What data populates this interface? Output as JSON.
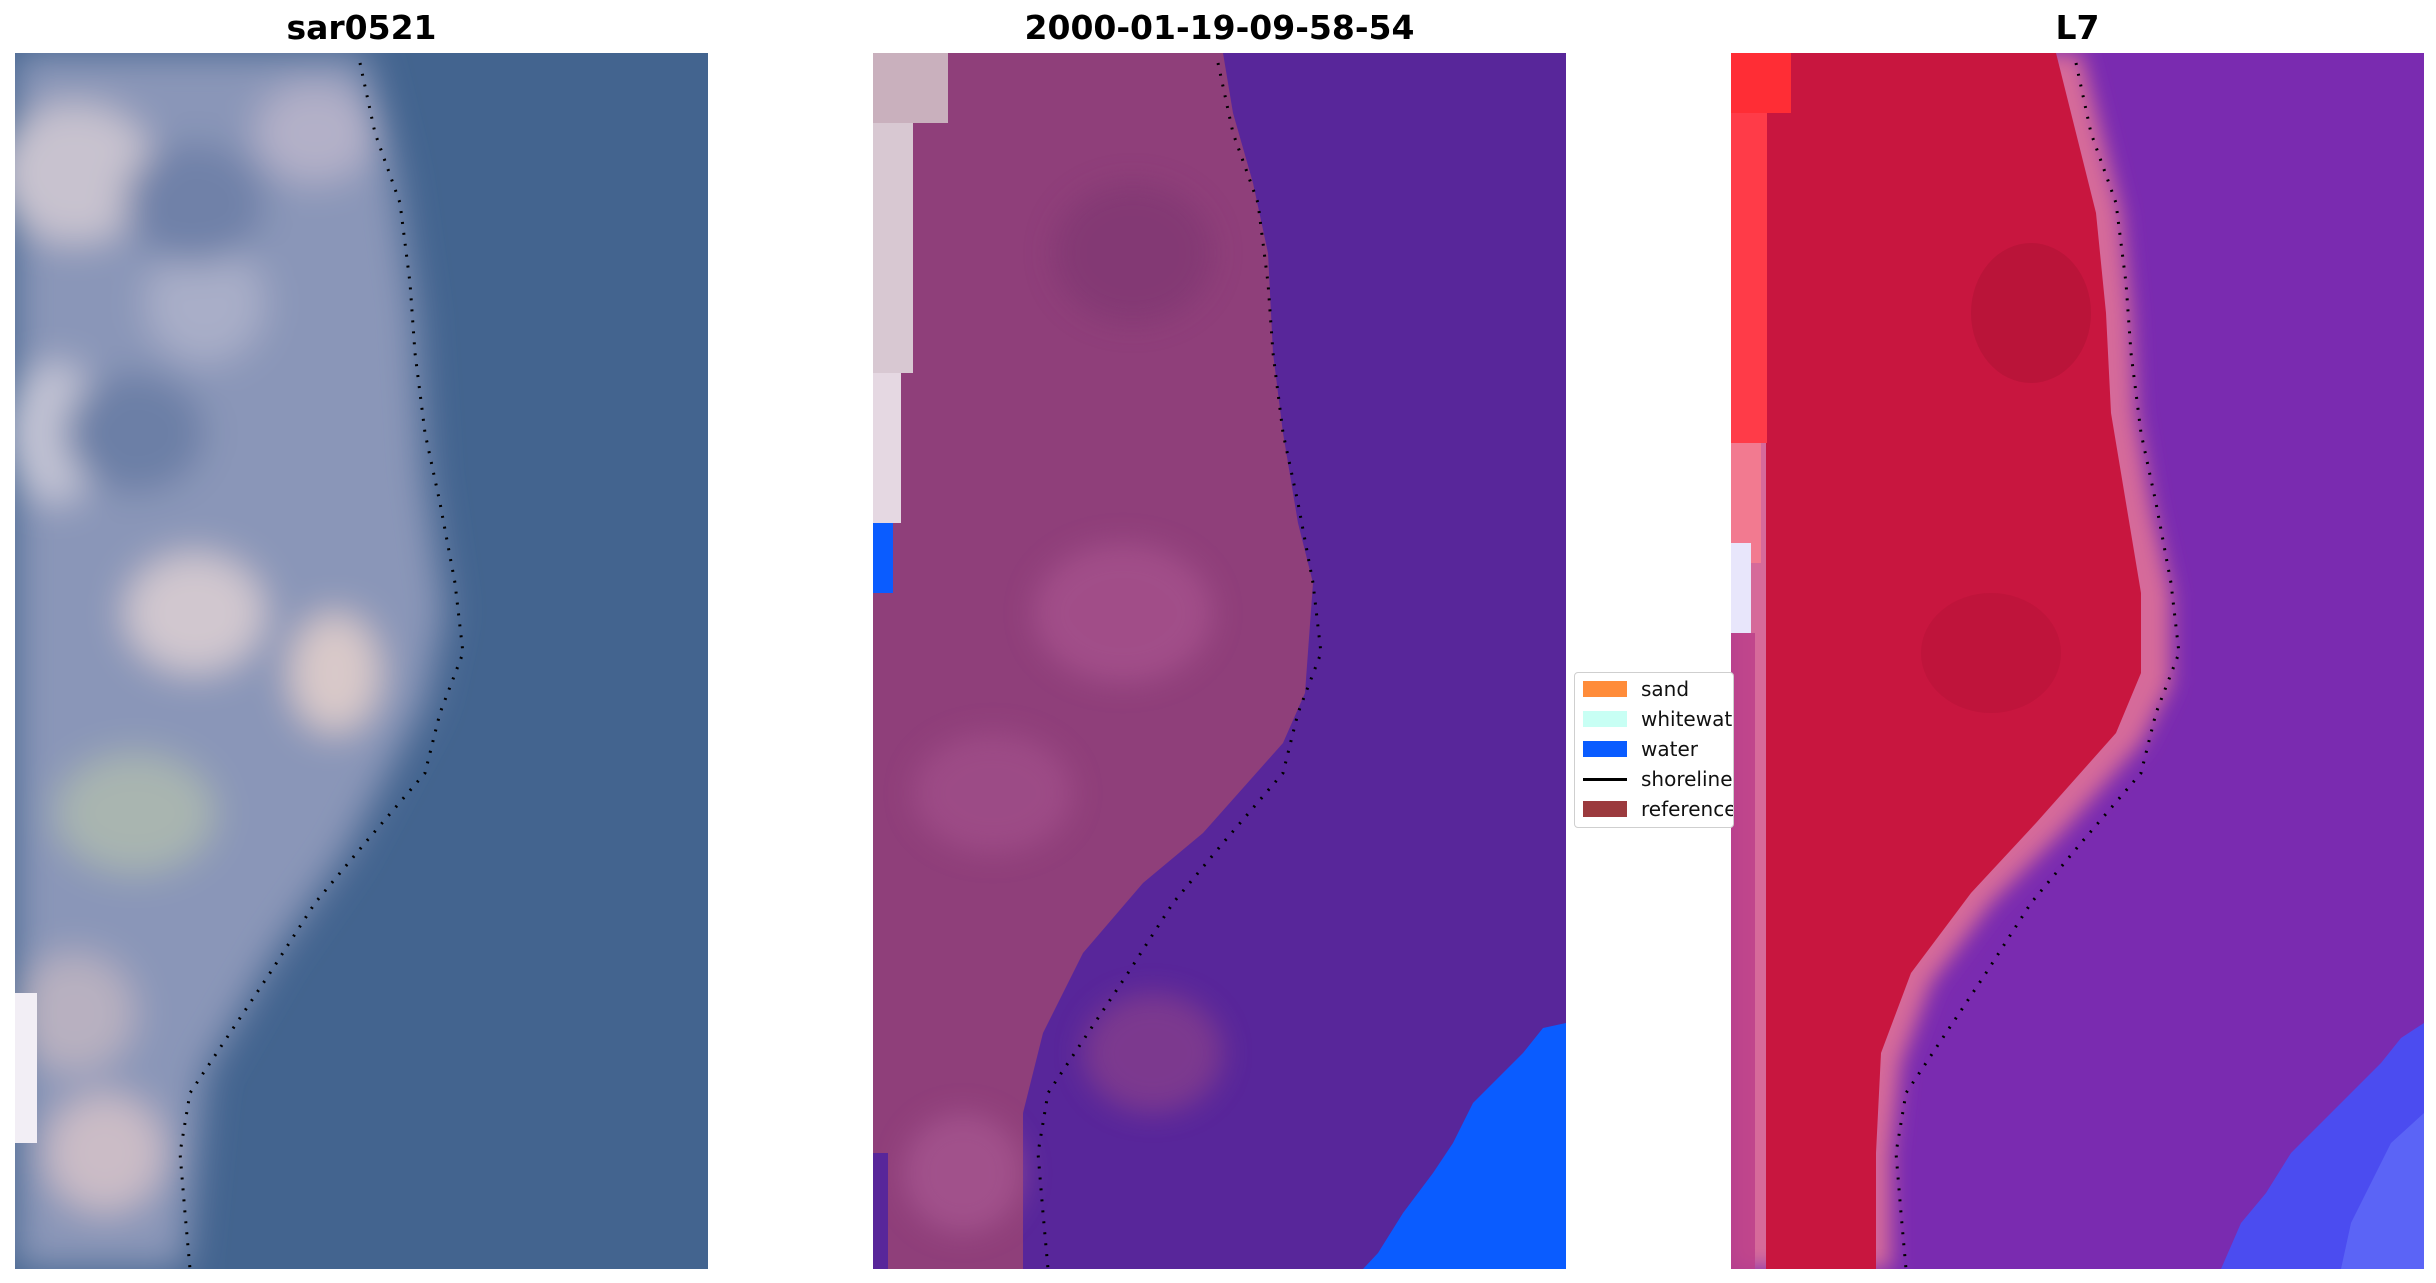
{
  "panels": [
    {
      "title": "sar0521"
    },
    {
      "title": "2000-01-19-09-58-54"
    },
    {
      "title": "L7"
    }
  ],
  "legend": {
    "items": [
      {
        "label": "sand",
        "color": "#ff8c3a",
        "kind": "patch"
      },
      {
        "label": "whitewater",
        "color": "#c8fff4",
        "kind": "patch"
      },
      {
        "label": "water",
        "color": "#0a5cff",
        "kind": "patch"
      },
      {
        "label": "shoreline",
        "color": "#000000",
        "kind": "line"
      },
      {
        "label": "reference",
        "color": "#9b3a3e",
        "kind": "patch"
      }
    ]
  },
  "colors": {
    "rgb_sea": "#43648f",
    "rgb_land": "#9aa3c2",
    "class_sea": "#58269a",
    "class_land": "#8f3f7a",
    "class_water": "#0a5cff",
    "false_land": "#c8163f",
    "false_sea": "#7a2bb0",
    "false_water": "#4b4cf0"
  }
}
